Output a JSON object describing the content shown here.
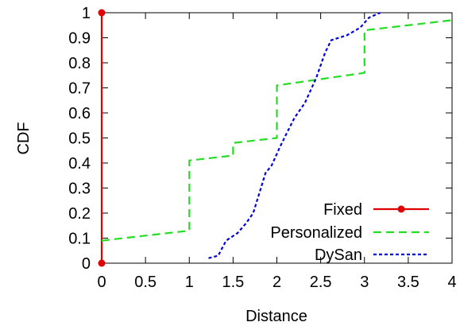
{
  "chart_data": {
    "type": "line",
    "title": "",
    "xlabel": "Distance",
    "ylabel": "CDF",
    "xlim": [
      0,
      4
    ],
    "ylim": [
      0,
      1
    ],
    "xticks": [
      "0",
      "0.5",
      "1",
      "1.5",
      "2",
      "2.5",
      "3",
      "3.5",
      "4"
    ],
    "yticks": [
      "0",
      "0.1",
      "0.2",
      "0.3",
      "0.4",
      "0.5",
      "0.6",
      "0.7",
      "0.8",
      "0.9",
      "1"
    ],
    "grid": false,
    "legend_position": "bottom-right",
    "series": [
      {
        "name": "Fixed",
        "color": "#e00000",
        "style": "solid-with-markers",
        "x": [
          0,
          0
        ],
        "y": [
          0,
          1
        ]
      },
      {
        "name": "Personalized",
        "color": "#22dd22",
        "style": "dashed",
        "x": [
          0,
          1,
          1,
          1.5,
          1.5,
          2,
          2,
          3,
          3,
          4
        ],
        "y": [
          0.09,
          0.13,
          0.41,
          0.43,
          0.48,
          0.5,
          0.71,
          0.76,
          0.93,
          0.97
        ]
      },
      {
        "name": "DySan",
        "color": "#0000dd",
        "style": "dotted",
        "x": [
          1.22,
          1.33,
          1.42,
          1.55,
          1.65,
          1.73,
          1.8,
          1.87,
          1.94,
          2.03,
          2.1,
          2.2,
          2.32,
          2.45,
          2.55,
          2.62,
          2.8,
          2.95,
          3.05,
          3.18
        ],
        "y": [
          0.02,
          0.03,
          0.09,
          0.12,
          0.16,
          0.2,
          0.28,
          0.36,
          0.39,
          0.46,
          0.51,
          0.58,
          0.64,
          0.74,
          0.84,
          0.89,
          0.91,
          0.94,
          0.98,
          1.0
        ]
      }
    ]
  }
}
